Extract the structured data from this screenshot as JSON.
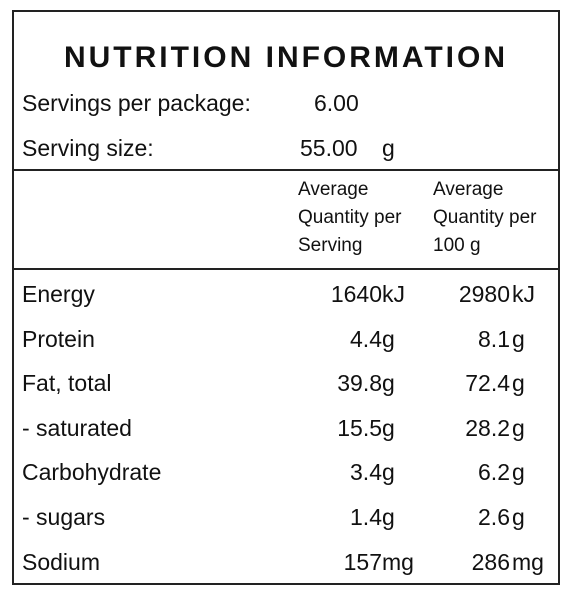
{
  "panel": {
    "title": "NUTRITION INFORMATION",
    "servings_per_package_label": "Servings per package:",
    "servings_per_package_value": "6.00",
    "serving_size_label": "Serving size:",
    "serving_size_value": "55.00",
    "serving_size_unit": "g",
    "column_per_serving": "Average\nQuantity per\nServing",
    "column_per_100g": "Average\nQuantity per\n100 g"
  },
  "rows": [
    {
      "nutrient": "Energy",
      "per_serving": "1640",
      "unit_serving": "kJ",
      "per_100g": "2980",
      "unit_100g": "kJ"
    },
    {
      "nutrient": "Protein",
      "per_serving": "4.4",
      "unit_serving": "g",
      "per_100g": "8.1",
      "unit_100g": "g"
    },
    {
      "nutrient": "Fat, total",
      "per_serving": "39.8",
      "unit_serving": "g",
      "per_100g": "72.4",
      "unit_100g": "g"
    },
    {
      "nutrient": "- saturated",
      "per_serving": "15.5",
      "unit_serving": "g",
      "per_100g": "28.2",
      "unit_100g": "g"
    },
    {
      "nutrient": "Carbohydrate",
      "per_serving": "3.4",
      "unit_serving": "g",
      "per_100g": "6.2",
      "unit_100g": "g"
    },
    {
      "nutrient": "- sugars",
      "per_serving": "1.4",
      "unit_serving": "g",
      "per_100g": "2.6",
      "unit_100g": "g"
    },
    {
      "nutrient": "Sodium",
      "per_serving": "157",
      "unit_serving": "mg",
      "per_100g": "286",
      "unit_100g": "mg"
    }
  ]
}
